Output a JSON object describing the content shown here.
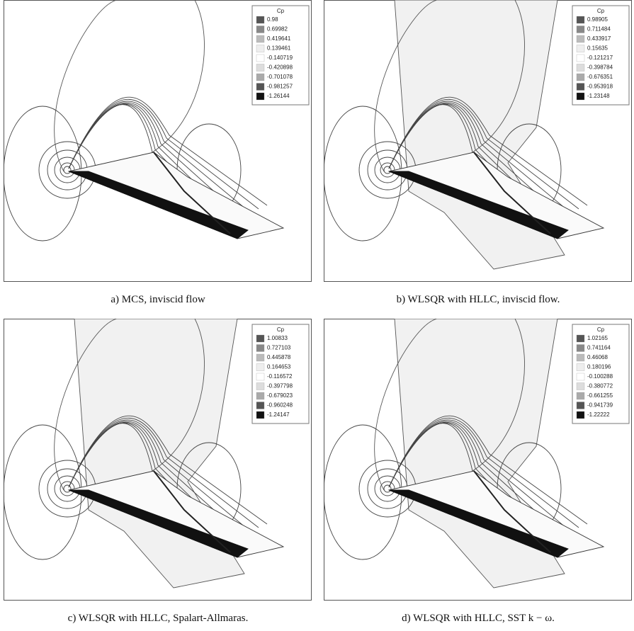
{
  "panels": [
    {
      "legend": {
        "title": "Cp",
        "values": [
          "0.98",
          "0.69982",
          "0.419641",
          "0.139461",
          "-0.140719",
          "-0.420898",
          "-0.701078",
          "-0.981257",
          "-1.26144"
        ]
      },
      "caption": "a) MCS, inviscid flow"
    },
    {
      "legend": {
        "title": "Cp",
        "values": [
          "0.98905",
          "0.711484",
          "0.433917",
          "0.15635",
          "-0.121217",
          "-0.398784",
          "-0.676351",
          "-0.953918",
          "-1.23148"
        ]
      },
      "caption": "b) WLSQR with HLLC, inviscid flow."
    },
    {
      "legend": {
        "title": "Cp",
        "values": [
          "1.00833",
          "0.727103",
          "0.445878",
          "0.164653",
          "-0.116572",
          "-0.397798",
          "-0.679023",
          "-0.960248",
          "-1.24147"
        ]
      },
      "caption": "c) WLSQR with HLLC, Spalart-Allmaras."
    },
    {
      "legend": {
        "title": "Cp",
        "values": [
          "1.02165",
          "0.741164",
          "0.46068",
          "0.180196",
          "-0.100288",
          "-0.380772",
          "-0.661255",
          "-0.941739",
          "-1.22222"
        ]
      },
      "caption": "d) WLSQR with HLLC, SST k − ω."
    }
  ]
}
